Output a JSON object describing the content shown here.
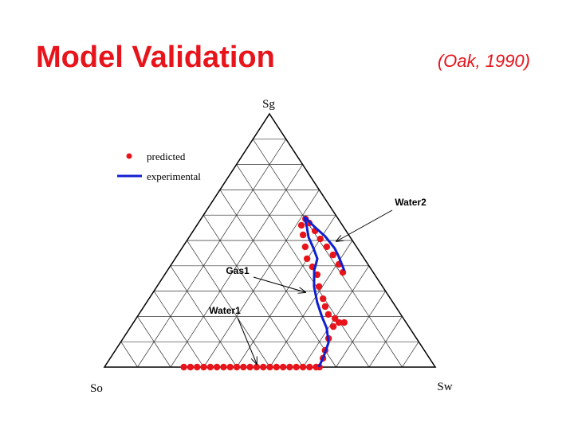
{
  "chart_data": {
    "type": "ternary",
    "title": "Model Validation",
    "subtitle": "(Oak, 1990)",
    "axes": {
      "top": "Sg",
      "left": "So",
      "right": "Sw"
    },
    "ticks": [
      0.1,
      0.2,
      0.3,
      0.4,
      0.5,
      0.6,
      0.7,
      0.8,
      0.9
    ],
    "grid": true,
    "legend": "upper left",
    "series": [
      {
        "name": "predicted",
        "color": "#e8141b",
        "marker": "dot",
        "sw": [
          0.24,
          0.26,
          0.28,
          0.3,
          0.32,
          0.34,
          0.36,
          0.38,
          0.4,
          0.42,
          0.44,
          0.46,
          0.48,
          0.5,
          0.52,
          0.54,
          0.56,
          0.58,
          0.6,
          0.62,
          0.64,
          0.65,
          0.643,
          0.634,
          0.621,
          0.612,
          0.621,
          0.637,
          0.601,
          0.573,
          0.548,
          0.526,
          0.49,
          0.461,
          0.431,
          0.399,
          0.37,
          0.34,
          0.316,
          0.316,
          0.335,
          0.368,
          0.4,
          0.435,
          0.47,
          0.506,
          0.534
        ],
        "sg": [
          0,
          0,
          0,
          0,
          0,
          0,
          0,
          0,
          0,
          0,
          0,
          0,
          0,
          0,
          0,
          0,
          0,
          0,
          0,
          0,
          0,
          0,
          0.035,
          0.066,
          0.113,
          0.16,
          0.176,
          0.176,
          0.192,
          0.208,
          0.239,
          0.27,
          0.318,
          0.365,
          0.396,
          0.428,
          0.475,
          0.522,
          0.56,
          0.585,
          0.569,
          0.538,
          0.506,
          0.475,
          0.443,
          0.406,
          0.374
        ]
      },
      {
        "name": "experimental",
        "color": "#1020d0",
        "marker": "line",
        "sw": [
          0.648,
          0.642,
          0.629,
          0.595,
          0.559,
          0.516,
          0.475,
          0.444,
          0.43,
          0.398,
          0.361,
          0.336,
          0.308
        ],
        "sg": [
          0,
          0.041,
          0.097,
          0.154,
          0.198,
          0.255,
          0.318,
          0.381,
          0.428,
          0.469,
          0.513,
          0.553,
          0.594
        ]
      },
      {
        "name": null,
        "color": "#1020d0",
        "marker": "line",
        "sw": [
          0.308,
          0.36,
          0.41,
          0.462,
          0.49,
          0.535
        ],
        "sg": [
          0.594,
          0.553,
          0.516,
          0.469,
          0.437,
          0.381
        ]
      }
    ],
    "annotations": [
      "Water2",
      "Gas1",
      "Water1"
    ]
  }
}
